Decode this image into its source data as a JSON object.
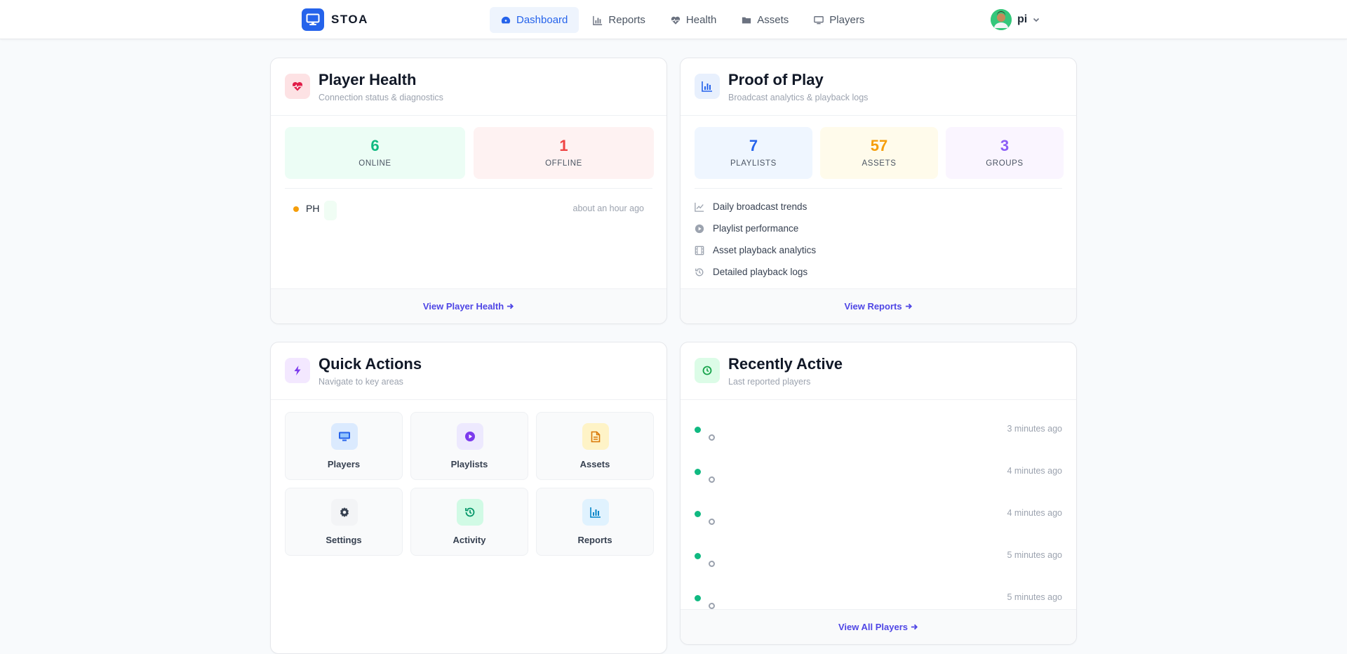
{
  "brand": {
    "name": "STOA"
  },
  "nav": [
    {
      "label": "Dashboard",
      "icon": "gauge-icon",
      "active": true
    },
    {
      "label": "Reports",
      "icon": "bar-chart-icon"
    },
    {
      "label": "Health",
      "icon": "heart-pulse-icon"
    },
    {
      "label": "Assets",
      "icon": "folder-icon"
    },
    {
      "label": "Players",
      "icon": "monitor-icon"
    }
  ],
  "user": {
    "name": "pi"
  },
  "player_health": {
    "title": "Player Health",
    "subtitle": "Connection status & diagnostics",
    "online": {
      "value": "6",
      "label": "ONLINE"
    },
    "offline": {
      "value": "1",
      "label": "OFFLINE"
    },
    "players": [
      {
        "name": "PH",
        "time": "about an hour ago"
      }
    ],
    "footer_link": "View Player Health"
  },
  "proof_of_play": {
    "title": "Proof of Play",
    "subtitle": "Broadcast analytics & playback logs",
    "stats": [
      {
        "value": "7",
        "label": "PLAYLISTS"
      },
      {
        "value": "57",
        "label": "ASSETS"
      },
      {
        "value": "3",
        "label": "GROUPS"
      }
    ],
    "items": [
      {
        "label": "Daily broadcast trends",
        "icon": "line-chart-icon"
      },
      {
        "label": "Playlist performance",
        "icon": "play-circle-icon"
      },
      {
        "label": "Asset playback analytics",
        "icon": "film-icon"
      },
      {
        "label": "Detailed playback logs",
        "icon": "history-icon"
      }
    ],
    "footer_link": "View Reports"
  },
  "quick_actions": {
    "title": "Quick Actions",
    "subtitle": "Navigate to key areas",
    "tiles": [
      {
        "label": "Players",
        "icon": "monitor-icon"
      },
      {
        "label": "Playlists",
        "icon": "play-circle-icon"
      },
      {
        "label": "Assets",
        "icon": "file-icon"
      },
      {
        "label": "Settings",
        "icon": "gear-icon"
      },
      {
        "label": "Activity",
        "icon": "history-icon"
      },
      {
        "label": "Reports",
        "icon": "bar-chart-icon"
      }
    ]
  },
  "recently_active": {
    "title": "Recently Active",
    "subtitle": "Last reported players",
    "rows": [
      {
        "time": "3 minutes ago"
      },
      {
        "time": "4 minutes ago"
      },
      {
        "time": "4 minutes ago"
      },
      {
        "time": "5 minutes ago"
      },
      {
        "time": "5 minutes ago"
      }
    ],
    "footer_link": "View All Players"
  },
  "colors": {
    "accent": "#2563eb",
    "link": "#4f46e5",
    "online": "#10b981",
    "offline": "#ef4444",
    "playlists": "#2563eb",
    "assets": "#f59e0b",
    "groups": "#8b5cf6"
  }
}
